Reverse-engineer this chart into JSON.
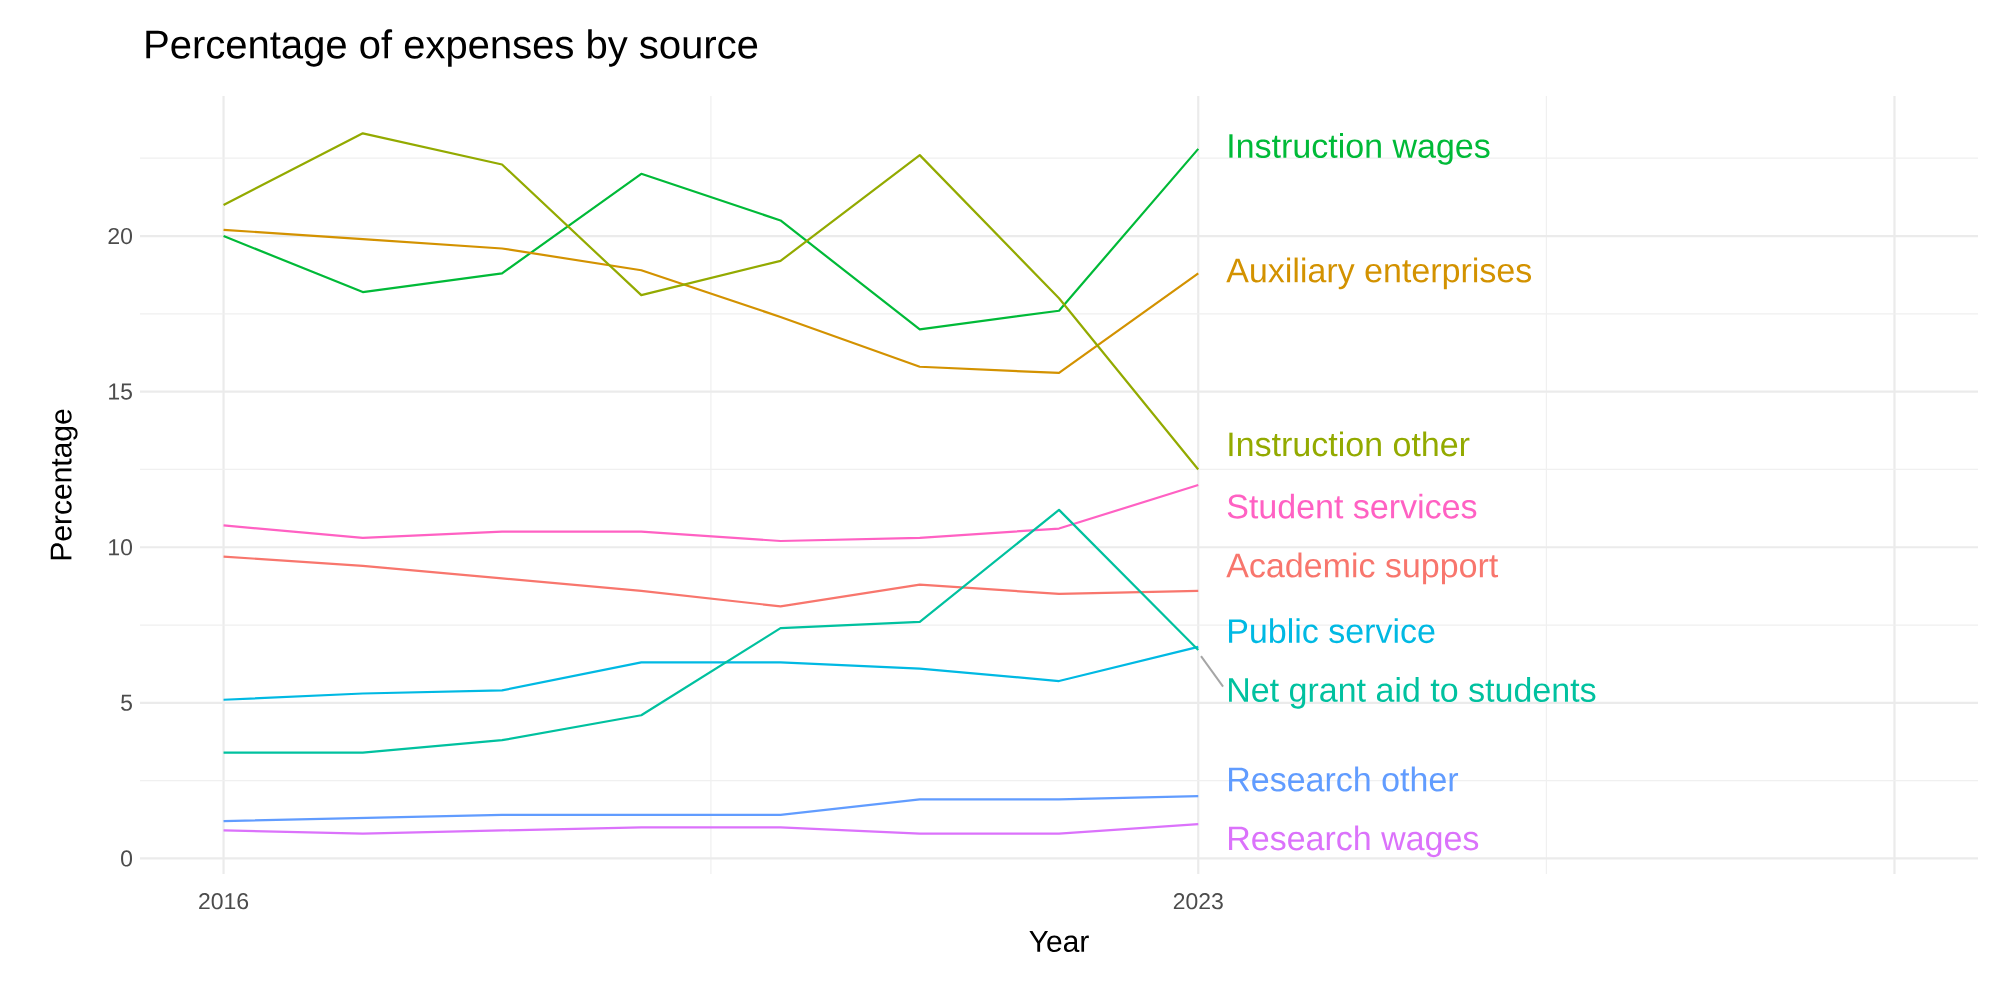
{
  "chart_data": {
    "type": "line",
    "title": "Percentage of expenses by source",
    "xlabel": "Year",
    "ylabel": "Percentage",
    "x": [
      2016,
      2017,
      2018,
      2019,
      2020,
      2021,
      2022,
      2023
    ],
    "series": [
      {
        "name": "Instruction wages",
        "color": "#00ba38",
        "values": [
          20.0,
          18.2,
          18.8,
          22.0,
          20.5,
          17.0,
          17.6,
          22.8
        ]
      },
      {
        "name": "Auxiliary enterprises",
        "color": "#d39200",
        "values": [
          20.2,
          19.9,
          19.6,
          18.9,
          17.4,
          15.8,
          15.6,
          18.8
        ]
      },
      {
        "name": "Instruction other",
        "color": "#93aa00",
        "values": [
          21.0,
          23.3,
          22.3,
          18.1,
          19.2,
          22.6,
          18.0,
          12.5
        ]
      },
      {
        "name": "Student services",
        "color": "#ff61c3",
        "values": [
          10.7,
          10.3,
          10.5,
          10.5,
          10.2,
          10.3,
          10.6,
          12.0
        ]
      },
      {
        "name": "Academic support",
        "color": "#f8766d",
        "values": [
          9.7,
          9.4,
          9.0,
          8.6,
          8.1,
          8.8,
          8.5,
          8.6
        ]
      },
      {
        "name": "Public service",
        "color": "#00b9e3",
        "values": [
          5.1,
          5.3,
          5.4,
          6.3,
          6.3,
          6.1,
          5.7,
          6.8
        ]
      },
      {
        "name": "Net grant aid to students",
        "color": "#00c19f",
        "values": [
          3.4,
          3.4,
          3.8,
          4.6,
          7.4,
          7.6,
          11.2,
          6.7
        ]
      },
      {
        "name": "Research other",
        "color": "#619cff",
        "values": [
          1.2,
          1.3,
          1.4,
          1.4,
          1.4,
          1.9,
          1.9,
          2.0
        ]
      },
      {
        "name": "Research wages",
        "color": "#db72fb",
        "values": [
          0.9,
          0.8,
          0.9,
          1.0,
          1.0,
          0.8,
          0.8,
          1.1
        ]
      }
    ],
    "xlim": [
      2015.4,
      2028.6
    ],
    "ylim": [
      -0.5,
      24.5
    ],
    "xticks": [
      2016,
      2023,
      {
        "value": 2028,
        "label": null
      }
    ],
    "yticks": [
      0,
      5,
      10,
      15,
      20
    ],
    "grid": true,
    "legend": false,
    "marker": "none",
    "line_style": "solid"
  }
}
